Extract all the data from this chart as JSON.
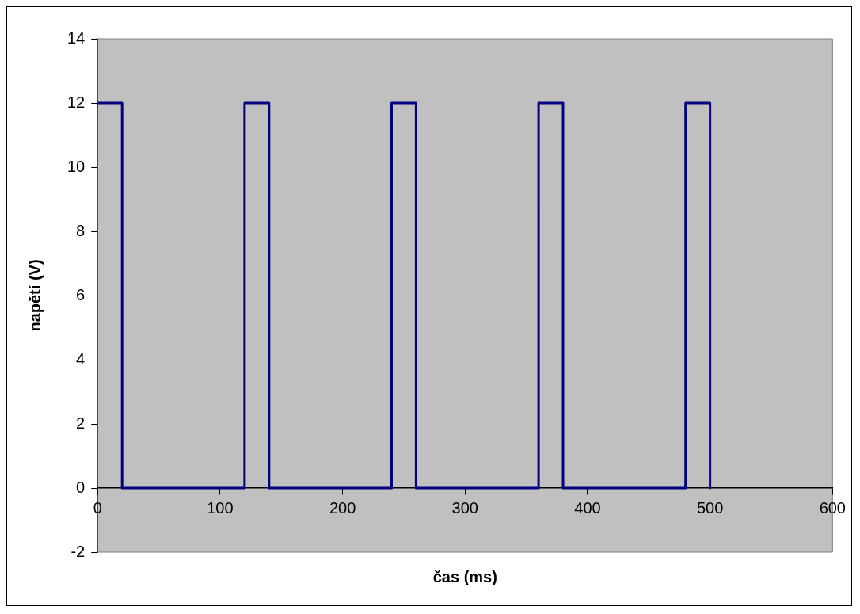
{
  "chart_data": {
    "type": "line",
    "xlabel": "čas (ms)",
    "ylabel": "napětí (V)",
    "series": [
      {
        "color": "#000080",
        "x": [
          0,
          20,
          20,
          120,
          120,
          140,
          140,
          240,
          240,
          260,
          260,
          360,
          360,
          380,
          380,
          480,
          480,
          500,
          500
        ],
        "values": [
          12,
          12,
          0,
          0,
          12,
          12,
          0,
          0,
          12,
          12,
          0,
          0,
          12,
          12,
          0,
          0,
          12,
          12,
          0
        ]
      }
    ],
    "xlim": [
      0,
      600
    ],
    "xticks": [
      0,
      100,
      200,
      300,
      400,
      500,
      600
    ],
    "ylim": [
      -2,
      14
    ],
    "yticks": [
      -2,
      0,
      2,
      4,
      6,
      8,
      10,
      12,
      14
    ],
    "grid": false,
    "legend": false,
    "marker": "none",
    "line_style": "solid"
  }
}
